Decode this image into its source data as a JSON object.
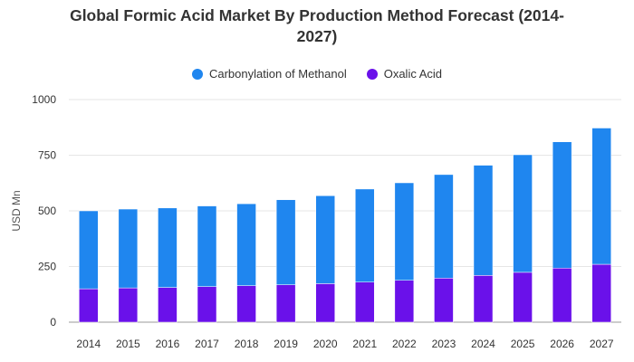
{
  "chart_data": {
    "type": "bar",
    "stacked": true,
    "title_line1": "Global Formic Acid Market By Production Method Forecast (2014-",
    "title_line2": "2027)",
    "xlabel": "",
    "ylabel": "USD Mn",
    "ylim": [
      0,
      1000
    ],
    "yticks": [
      "0",
      "250",
      "500",
      "750",
      "1000"
    ],
    "ytick_values": [
      0,
      250,
      500,
      750,
      1000
    ],
    "categories": [
      "2014",
      "2015",
      "2016",
      "2017",
      "2018",
      "2019",
      "2020",
      "2021",
      "2022",
      "2023",
      "2024",
      "2025",
      "2026",
      "2027"
    ],
    "series": [
      {
        "name": "Oxalic Acid",
        "color": "#6a11ea",
        "values": [
          150,
          154,
          156,
          160,
          164,
          168,
          173,
          180,
          188,
          198,
          210,
          224,
          243,
          260
        ]
      },
      {
        "name": "Carbonylation of Methanol",
        "color": "#1f86ef",
        "values": [
          350,
          354,
          357,
          362,
          368,
          382,
          395,
          418,
          438,
          465,
          495,
          528,
          567,
          612
        ]
      }
    ],
    "legend": [
      "Carbonylation of Methanol",
      "Oxalic Acid"
    ],
    "legend_colors": [
      "#1f86ef",
      "#6a11ea"
    ]
  }
}
